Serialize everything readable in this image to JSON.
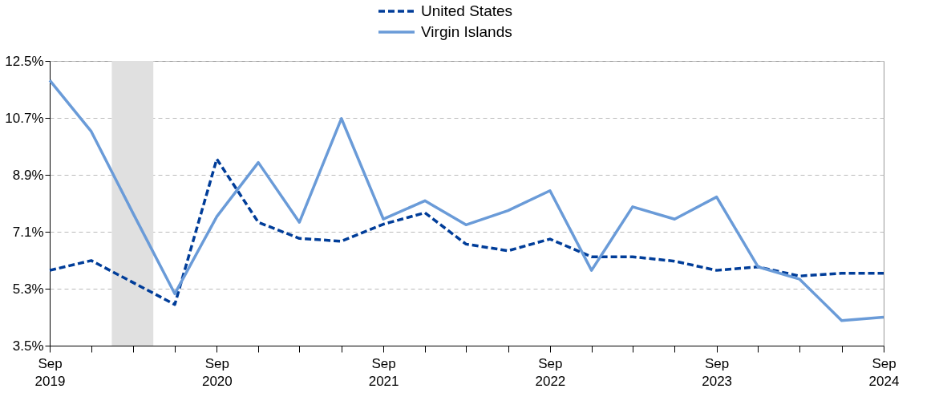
{
  "chart_data": {
    "type": "line",
    "x": [
      "2019-09",
      "2019-12",
      "2020-03",
      "2020-06",
      "2020-09",
      "2020-12",
      "2021-03",
      "2021-06",
      "2021-09",
      "2021-12",
      "2022-03",
      "2022-06",
      "2022-09",
      "2022-12",
      "2023-03",
      "2023-06",
      "2023-09",
      "2023-12",
      "2024-03",
      "2024-06",
      "2024-09"
    ],
    "series": [
      {
        "name": "United States",
        "color": "#003d99",
        "line_style": "dashed",
        "values": [
          5.88,
          6.19,
          5.5,
          4.8,
          9.4,
          7.4,
          6.89,
          6.8,
          7.34,
          7.7,
          6.71,
          6.5,
          6.87,
          6.31,
          6.31,
          6.17,
          5.88,
          5.99,
          5.7,
          5.79,
          5.79
        ]
      },
      {
        "name": "Virgin Islands",
        "color": "#6a9bd8",
        "line_style": "solid",
        "values": [
          11.89,
          10.27,
          7.7,
          5.14,
          7.58,
          9.29,
          7.4,
          10.68,
          7.5,
          8.08,
          7.32,
          7.77,
          8.4,
          5.88,
          7.89,
          7.5,
          8.2,
          5.99,
          5.6,
          4.29,
          4.4
        ]
      }
    ],
    "xlim": [
      "2019-09",
      "2024-09"
    ],
    "xticks": [
      {
        "value": "2019-09",
        "label": "Sep\n2019"
      },
      {
        "value": "2019-12",
        "label": null
      },
      {
        "value": "2020-03",
        "label": null
      },
      {
        "value": "2020-06",
        "label": null
      },
      {
        "value": "2020-09",
        "label": "Sep\n2020"
      },
      {
        "value": "2020-12",
        "label": null
      },
      {
        "value": "2021-03",
        "label": null
      },
      {
        "value": "2021-06",
        "label": null
      },
      {
        "value": "2021-09",
        "label": "Sep\n2021"
      },
      {
        "value": "2021-12",
        "label": null
      },
      {
        "value": "2022-03",
        "label": null
      },
      {
        "value": "2022-06",
        "label": null
      },
      {
        "value": "2022-09",
        "label": "Sep\n2022"
      },
      {
        "value": "2022-12",
        "label": null
      },
      {
        "value": "2023-03",
        "label": null
      },
      {
        "value": "2023-06",
        "label": null
      },
      {
        "value": "2023-09",
        "label": "Sep\n2023"
      },
      {
        "value": "2023-12",
        "label": null
      },
      {
        "value": "2024-03",
        "label": null
      },
      {
        "value": "2024-06",
        "label": null
      },
      {
        "value": "2024-09",
        "label": "Sep\n2024"
      }
    ],
    "ylim": [
      3.5,
      12.5
    ],
    "yticks": [
      {
        "value": 3.5,
        "label": "3.5%"
      },
      {
        "value": 5.3,
        "label": "5.3%"
      },
      {
        "value": 7.1,
        "label": "7.1%"
      },
      {
        "value": 8.9,
        "label": "8.9%"
      },
      {
        "value": 10.7,
        "label": "10.7%"
      },
      {
        "value": 12.5,
        "label": "12.5%"
      }
    ],
    "bands": [
      {
        "axis": "x",
        "from": "2020-01-15",
        "to": "2020-04-15",
        "label": null,
        "color": "#e0e0e0"
      }
    ],
    "grid": "y",
    "legend": "top",
    "marker": "none"
  }
}
